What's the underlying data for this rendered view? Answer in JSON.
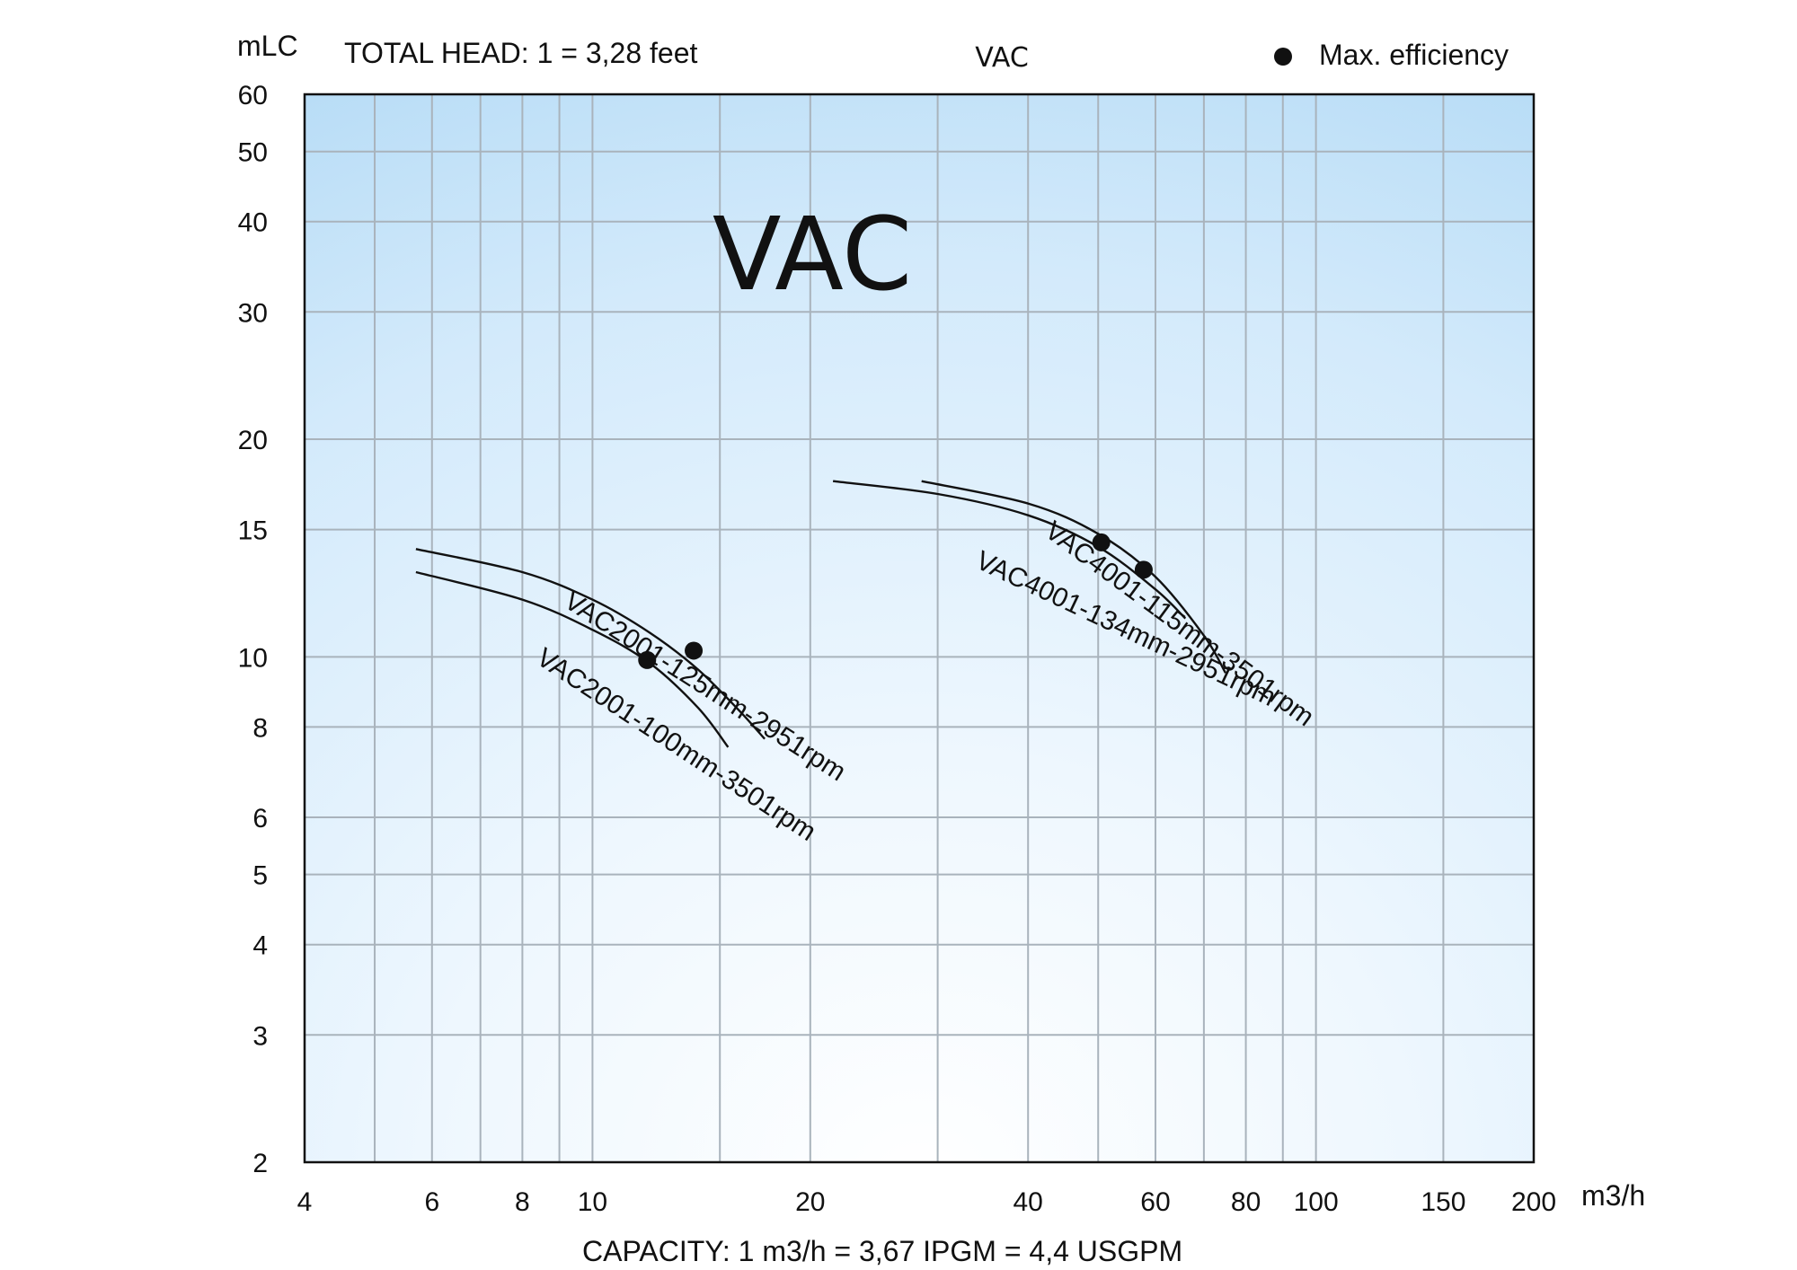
{
  "chart_data": {
    "type": "line",
    "title": "VAC",
    "header_title": "VAC",
    "head_conversion": "TOTAL HEAD: 1  = 3,28 feet",
    "capacity_conversion": "CAPACITY: 1  m3/h   = 3,67 IPGM = 4,4 USGPM",
    "xlabel": "m3/h",
    "ylabel": "mLC",
    "x_scale": "log",
    "y_scale": "log",
    "xlim": [
      4,
      200
    ],
    "ylim": [
      2,
      60
    ],
    "x_ticks": [
      4,
      6,
      8,
      10,
      20,
      40,
      60,
      80,
      100,
      150,
      200
    ],
    "x_gridlines": [
      5,
      6,
      7,
      8,
      9,
      10,
      15,
      20,
      30,
      40,
      50,
      60,
      70,
      80,
      90,
      100,
      150,
      200
    ],
    "y_ticks": [
      2,
      3,
      4,
      5,
      6,
      8,
      10,
      15,
      20,
      30,
      40,
      50,
      60
    ],
    "grid": true,
    "legend": {
      "entry": "Max. efficiency",
      "marker": "dot",
      "placement": "top-right"
    },
    "colors": {
      "background_top": "#b9ddf6",
      "background_bottom": "#f3f9fe",
      "grid": "#a9b3bc",
      "curve": "#111111"
    },
    "series": [
      {
        "name": "VAC2001-125mm-2951rpm",
        "x": [
          5.7,
          8,
          10,
          12,
          14,
          16,
          17.3
        ],
        "y": [
          14.1,
          13.1,
          12.0,
          10.8,
          9.6,
          8.4,
          7.7
        ],
        "max_efficiency": [
          13.8,
          10.2
        ]
      },
      {
        "name": "VAC2001-100mm-3501rpm",
        "x": [
          5.7,
          8,
          10,
          12,
          14,
          15.4
        ],
        "y": [
          13.1,
          12.0,
          10.9,
          9.8,
          8.5,
          7.5
        ],
        "max_efficiency": [
          11.9,
          9.9
        ]
      },
      {
        "name": "VAC4001-134mm-2951rpm",
        "x": [
          21.5,
          30,
          40,
          50,
          60,
          66
        ],
        "y": [
          17.5,
          16.8,
          15.7,
          14.2,
          12.4,
          11.3
        ],
        "max_efficiency": [
          57.8,
          13.2
        ]
      },
      {
        "name": "VAC4001-115mm-3501rpm",
        "x": [
          28.5,
          40,
          50,
          60,
          70,
          75
        ],
        "y": [
          17.5,
          16.3,
          14.8,
          12.9,
          10.7,
          9.5
        ],
        "max_efficiency": [
          50.5,
          14.4
        ]
      }
    ]
  }
}
